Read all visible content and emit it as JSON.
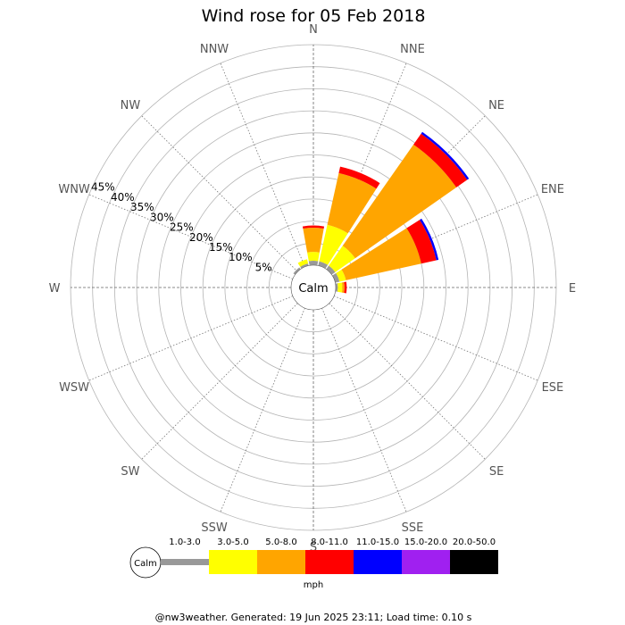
{
  "chart_data": {
    "type": "wind-rose",
    "title": "Wind rose for 05 Feb 2018",
    "directions": [
      "N",
      "NNE",
      "NE",
      "ENE",
      "E",
      "ESE",
      "SE",
      "SSE",
      "S",
      "SSW",
      "SW",
      "WSW",
      "W",
      "WNW",
      "NW",
      "NNW"
    ],
    "radial_labels": [
      "5%",
      "10%",
      "15%",
      "20%",
      "25%",
      "30%",
      "35%",
      "40%",
      "45%"
    ],
    "radial_max": 50,
    "calm_label": "Calm",
    "unit_label": "mph",
    "bins": [
      {
        "label": "1.0-3.0",
        "color": "#999999"
      },
      {
        "label": "3.0-5.0",
        "color": "#ffff00"
      },
      {
        "label": "5.0-8.0",
        "color": "#ffa500"
      },
      {
        "label": "8.0-11.0",
        "color": "#ff0000"
      },
      {
        "label": "11.0-15.0",
        "color": "#0000ff"
      },
      {
        "label": "15.0-20.0",
        "color": "#a020f0"
      },
      {
        "label": "20.0-50.0",
        "color": "#000000"
      }
    ],
    "series": [
      {
        "direction": "N",
        "cumulative": [
          1,
          3,
          8.5,
          9,
          9,
          9,
          9
        ]
      },
      {
        "direction": "NNE",
        "cumulative": [
          1,
          9.5,
          21.5,
          23,
          23,
          23,
          23
        ]
      },
      {
        "direction": "NE",
        "cumulative": [
          1,
          6.5,
          34.5,
          37.5,
          38,
          38,
          38
        ]
      },
      {
        "direction": "ENE",
        "cumulative": [
          1,
          2.5,
          20,
          23.5,
          24,
          24,
          24
        ]
      },
      {
        "direction": "E",
        "cumulative": [
          0.5,
          1.5,
          2,
          2.5,
          2.5,
          2.5,
          2.5
        ]
      },
      {
        "direction": "NNW",
        "cumulative": [
          0.5,
          1.5,
          1.5,
          1.5,
          1.5,
          1.5,
          1.5
        ]
      },
      {
        "direction": "NW",
        "cumulative": [
          0.5,
          0.5,
          0.5,
          0.5,
          0.5,
          0.5,
          0.5
        ]
      }
    ],
    "footer": "@nw3weather. Generated: 19 Jun 2025 23:11; Load time: 0.10 s"
  }
}
